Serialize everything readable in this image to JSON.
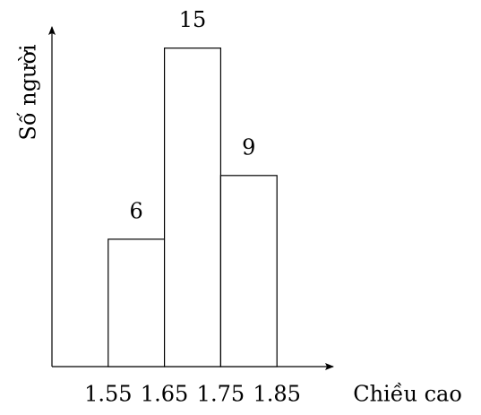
{
  "chart_data": {
    "type": "histogram",
    "xlabel": "Chiều cao",
    "ylabel": "Số người",
    "bins": [
      1.55,
      1.65,
      1.75,
      1.85
    ],
    "values": [
      6,
      15,
      9
    ],
    "color": "#ffffff",
    "xlim": [
      1.45,
      1.95
    ],
    "ylim": [
      0,
      16
    ]
  }
}
